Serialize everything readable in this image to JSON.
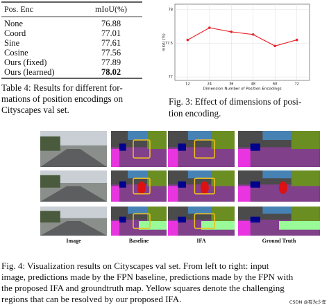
{
  "table": {
    "columns": [
      "Pos. Enc",
      "mIoU(%)"
    ],
    "rows": [
      [
        "None",
        "76.88"
      ],
      [
        "Coord",
        "77.01"
      ],
      [
        "Sine",
        "77.61"
      ],
      [
        "Cosine",
        "77.56"
      ],
      [
        "Ours (fixed)",
        "77.89"
      ],
      [
        "Ours (learned)",
        "78.02"
      ]
    ],
    "highlight_row": 5
  },
  "table_caption": [
    "Table 4: Results for different for-",
    "mations of position encodings on",
    "Cityscapes val set."
  ],
  "chart_data": {
    "type": "line",
    "x_label": "Dimension Number of Position Encodings",
    "y_label": "mIoU (%)",
    "x": [
      12,
      24,
      36,
      48,
      60,
      72
    ],
    "series": [
      {
        "name": "mIoU",
        "color": "#e8272b",
        "values": [
          77.55,
          77.73,
          77.67,
          77.63,
          77.46,
          77.55
        ]
      }
    ],
    "xlim": [
      5,
      79
    ],
    "ylim": [
      76.95,
      78.08
    ],
    "xticks": [
      12,
      24,
      36,
      48,
      60,
      72
    ],
    "yticks": [
      77,
      77.5,
      78
    ],
    "grid": true
  },
  "figure3_caption": [
    "Fig. 3: Effect of dimensions of posi-",
    "tion encoding."
  ],
  "figure4": {
    "labels": [
      "Image",
      "Baseline",
      "IFA",
      "Ground Truth"
    ],
    "caption": [
      "Fig. 4: Visualization results on Cityscapes val set. From left to right: input",
      "image, predictions made by the FPN baseline, predictions made by the FPN with",
      "the proposed IFA and groundtruth map. Yellow squares denote the challenging",
      "regions that can be resolved by our proposed IFA."
    ]
  },
  "watermark": "CSDN @有为少年"
}
